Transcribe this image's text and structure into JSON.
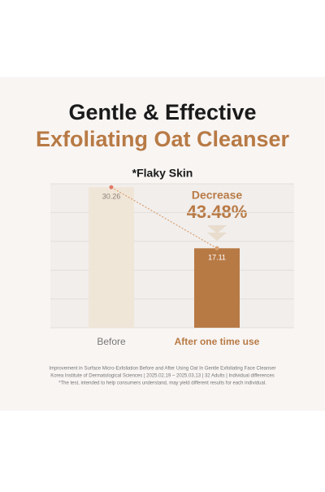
{
  "chart_data": {
    "type": "bar",
    "title": "Gentle & Effective",
    "subtitle": "Exfoliating Oat Cleanser",
    "chart_title": "*Flaky Skin",
    "categories": [
      "Before",
      "After one time use"
    ],
    "values": [
      30.26,
      17.11
    ],
    "colors": [
      "#f0e6d8",
      "#b87a45"
    ],
    "ylim": [
      0,
      31
    ],
    "grid": true,
    "annotation": {
      "label": "Decrease",
      "value": "43.48%"
    },
    "footnotes": [
      "Improvement in Surface Micro-Exfoliation Before and After Using Oat In Gentle Exfoliating Face Cleanser",
      "Korea Institute of Dermatological Sciences | 2025.02.19 ~ 2025.03.13 | 32 Adults | Individual differences",
      "*The test, intended to help consumers understand, may yield different results for each individual."
    ]
  }
}
